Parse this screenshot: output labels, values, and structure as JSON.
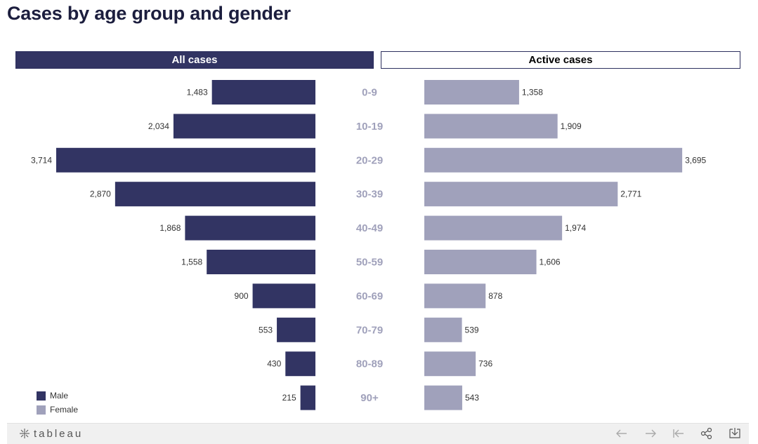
{
  "title": "Cases by age group and gender",
  "tabs": [
    {
      "label": "All cases",
      "active": true
    },
    {
      "label": "Active cases",
      "active": false
    }
  ],
  "colors": {
    "male": "#323463",
    "female": "#a0a1bb",
    "age_label": "#a0a1bb",
    "title": "#1c1e3e"
  },
  "legend": [
    {
      "label": "Male",
      "color": "#323463"
    },
    {
      "label": "Female",
      "color": "#a0a1bb"
    }
  ],
  "footer": {
    "brand": "tableau",
    "icons": [
      "undo-icon",
      "redo-icon",
      "revert-icon",
      "share-icon",
      "download-icon"
    ]
  },
  "chart_data": {
    "type": "bar",
    "categories": [
      "0-9",
      "10-19",
      "20-29",
      "30-39",
      "40-49",
      "50-59",
      "60-69",
      "70-79",
      "80-89",
      "90+"
    ],
    "series": [
      {
        "name": "Male",
        "values": [
          1483,
          2034,
          3714,
          2870,
          1868,
          1558,
          900,
          553,
          430,
          215
        ],
        "labels": [
          "1,483",
          "2,034",
          "3,714",
          "2,870",
          "1,868",
          "1,558",
          "900",
          "553",
          "430",
          "215"
        ]
      },
      {
        "name": "Female",
        "values": [
          1358,
          1909,
          3695,
          2771,
          1974,
          1606,
          878,
          539,
          736,
          543
        ],
        "labels": [
          "1,358",
          "1,909",
          "3,695",
          "2,771",
          "1,974",
          "1,606",
          "878",
          "539",
          "736",
          "543"
        ]
      }
    ],
    "orientation": "horizontal-diverging",
    "legend_position": "bottom-left"
  }
}
